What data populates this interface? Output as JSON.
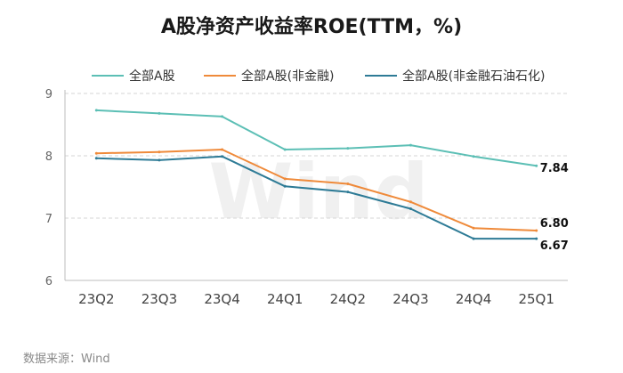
{
  "title": "A股净资产收益率ROE(TTM，%)",
  "source": "数据来源：Wind",
  "watermark": "Wind",
  "chart_data": {
    "type": "line",
    "title": "A股净资产收益率ROE(TTM，%)",
    "xlabel": "",
    "ylabel": "",
    "ylim": [
      6,
      9
    ],
    "yticks": [
      "6",
      "7",
      "8",
      "9"
    ],
    "grid": true,
    "legend_position": "top",
    "categories": [
      "23Q2",
      "23Q3",
      "23Q4",
      "24Q1",
      "24Q2",
      "24Q3",
      "24Q4",
      "25Q1"
    ],
    "series": [
      {
        "name": "全部A股",
        "color": "#5cbfb5",
        "values": [
          8.73,
          8.68,
          8.63,
          8.1,
          8.12,
          8.17,
          7.99,
          7.84
        ],
        "end_label": "7.84"
      },
      {
        "name": "全部A股(非金融)",
        "color": "#ef8a3a",
        "values": [
          8.04,
          8.06,
          8.1,
          7.63,
          7.55,
          7.26,
          6.84,
          6.8
        ],
        "end_label": "6.80"
      },
      {
        "name": "全部A股(非金融石油石化)",
        "color": "#2e7b96",
        "values": [
          7.96,
          7.93,
          7.99,
          7.51,
          7.42,
          7.15,
          6.67,
          6.67
        ],
        "end_label": "6.67"
      }
    ]
  }
}
